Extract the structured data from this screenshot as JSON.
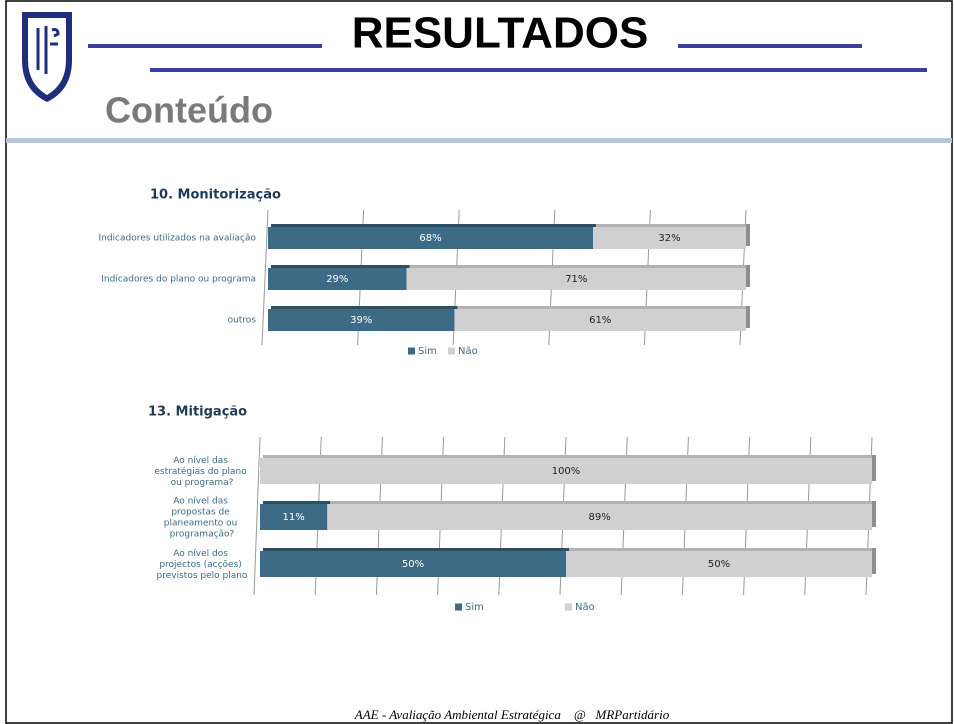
{
  "header": {
    "title": "RESULTADOS",
    "subtitle": "Conteúdo"
  },
  "footer": "AAE - Avaliação Ambiental Estratégica    @   MRPartidário",
  "chart_data": [
    {
      "type": "bar",
      "orientation": "horizontal",
      "stacked": true,
      "title": "10. Monitorização",
      "categories": [
        "Indicadores utilizados na avaliação",
        "Indicadores do plano ou programa",
        "outros"
      ],
      "series": [
        {
          "name": "Sim",
          "color": "#3d6a84",
          "values": [
            68,
            29,
            39
          ],
          "value_labels": [
            "68%",
            "29%",
            "39%"
          ]
        },
        {
          "name": "Não",
          "color": "#d0d0d0",
          "values": [
            32,
            71,
            61
          ],
          "value_labels": [
            "32%",
            "71%",
            "61%"
          ]
        }
      ],
      "xlim": [
        0,
        100
      ],
      "xticks": [
        0,
        20,
        40,
        60,
        80,
        100
      ],
      "grid": true,
      "legend": "bottom"
    },
    {
      "type": "bar",
      "orientation": "horizontal",
      "stacked": true,
      "title": "13. Mitigação",
      "categories": [
        "Ao nível das estratégias do plano ou programa?",
        "Ao nível das propostas de planeamento ou programação?",
        "Ao nível dos projectos (acções) previstos pelo plano"
      ],
      "series": [
        {
          "name": "Sim",
          "color": "#3d6a84",
          "values": [
            0,
            11,
            50
          ],
          "value_labels": [
            "0%",
            "11%",
            "50%"
          ]
        },
        {
          "name": "Não",
          "color": "#d0d0d0",
          "values": [
            100,
            89,
            50
          ],
          "value_labels": [
            "100%",
            "89%",
            "50%"
          ]
        }
      ],
      "xlim": [
        0,
        100
      ],
      "xticks": [
        0,
        10,
        20,
        30,
        40,
        50,
        60,
        70,
        80,
        90,
        100
      ],
      "grid": true,
      "legend": "bottom"
    }
  ]
}
